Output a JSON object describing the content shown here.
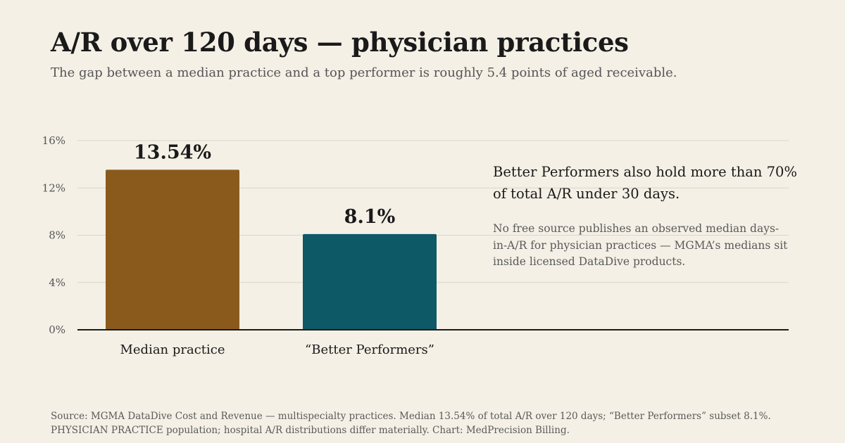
{
  "header": {
    "title": "A/R over 120 days — physician practices",
    "subtitle": "The gap between a median practice and a top performer is roughly 5.4 points of aged receivable."
  },
  "callout": {
    "headline": "Better Performers also hold more than 70% of total A/R under 30 days.",
    "note": "No free source publishes an observed median days-in-A/R for physician practices — MGMA’s medians sit inside licensed DataDive products."
  },
  "footer": {
    "source": "Source: MGMA DataDive Cost and Revenue — multispecialty practices. Median 13.54% of total A/R over 120 days; “Better Performers” subset 8.1%. PHYSICIAN PRACTICE population; hospital A/R distributions differ materially. Chart: MedPrecision Billing."
  },
  "chart_data": {
    "type": "bar",
    "title": "",
    "xlabel": "",
    "ylabel": "",
    "categories": [
      "Median practice",
      "“Better Performers”"
    ],
    "values": [
      13.54,
      8.1
    ],
    "value_labels": [
      "13.54%",
      "8.1%"
    ],
    "colors": [
      "#8a5a1c",
      "#0d5965"
    ],
    "ylim": [
      0,
      16
    ],
    "yticks": [
      0,
      4,
      8,
      12,
      16
    ],
    "ytick_labels": [
      "0%",
      "4%",
      "8%",
      "12%",
      "16%"
    ],
    "grid": true,
    "legend": "none"
  }
}
